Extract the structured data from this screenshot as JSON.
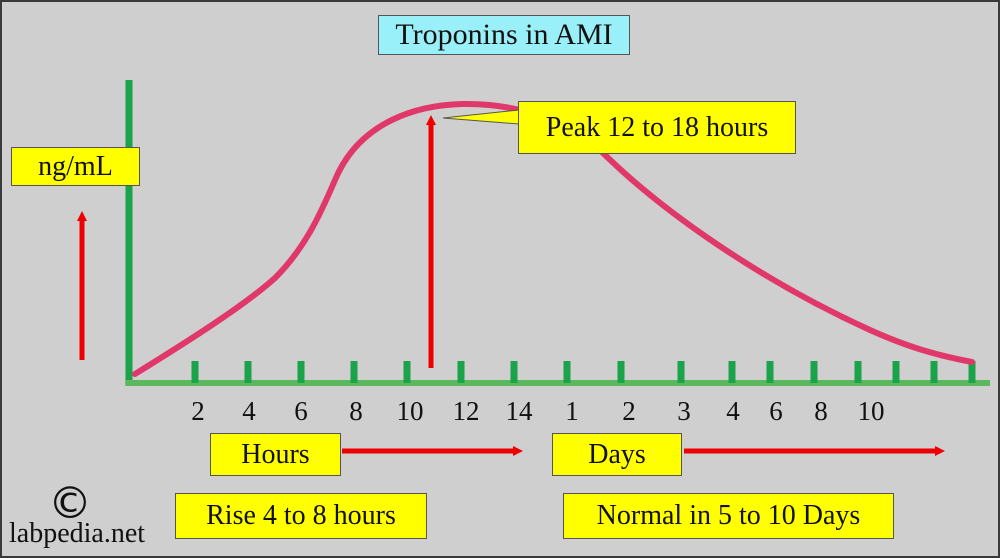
{
  "title": "Troponins in AMI",
  "y_axis_label": "ng/mL",
  "peak_callout": "Peak 12 to 18 hours",
  "hours_label": "Hours",
  "days_label": "Days",
  "rise_note": "Rise 4 to 8 hours",
  "normal_note": "Normal in 5 to 10 Days",
  "hour_ticks": [
    "2",
    "4",
    "6",
    "8",
    "10",
    "12",
    "14"
  ],
  "day_ticks": [
    "1",
    "2",
    "3",
    "4",
    "6",
    "8",
    "10"
  ],
  "watermark": {
    "symbol": "©",
    "text": "labpedia.net"
  },
  "colors": {
    "background": "#cfcfcf",
    "axis": "#1aa34a",
    "curve": "#e0386a",
    "arrow": "#ee0000",
    "label_box": "#ffff00",
    "title_box": "#99f0f8"
  }
}
